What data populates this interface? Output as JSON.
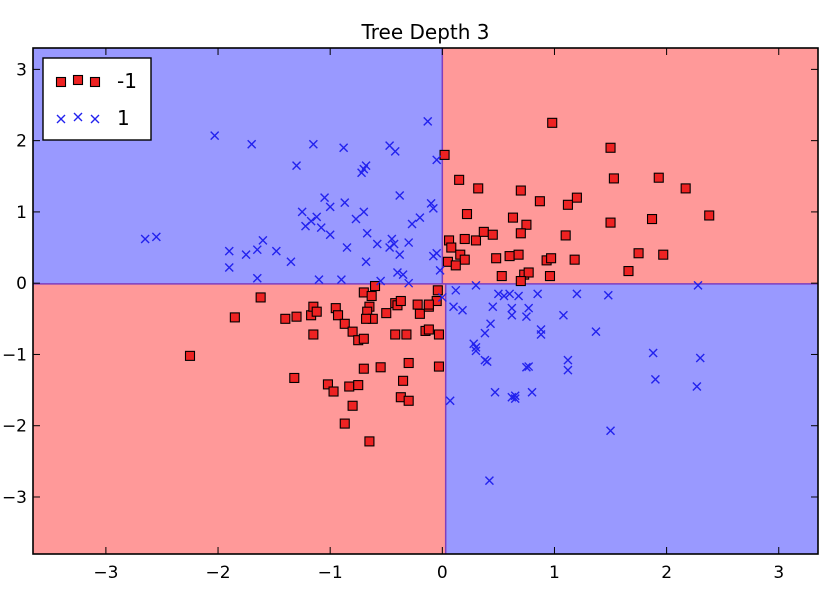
{
  "chart_data": {
    "type": "scatter",
    "title": "Tree Depth 3",
    "xlabel": "",
    "ylabel": "",
    "xlim": [
      -3.65,
      3.35
    ],
    "ylim": [
      -3.8,
      3.3
    ],
    "xticks": [
      -3,
      -2,
      -1,
      0,
      1,
      2,
      3
    ],
    "xtick_labels": [
      "−3",
      "−2",
      "−1",
      "0",
      "1",
      "2",
      "3"
    ],
    "yticks": [
      -3,
      -2,
      -1,
      0,
      1,
      2,
      3
    ],
    "ytick_labels": [
      "−3",
      "−2",
      "−1",
      "0",
      "1",
      "2",
      "3"
    ],
    "grid": false,
    "legend_position": "top-left",
    "colors": {
      "region_negative": "#ff9999",
      "region_positive": "#9999ff",
      "boundary": "#7f3fbf",
      "square_fill": "#ee2222",
      "cross_stroke": "#2222ee"
    },
    "decision_regions": [
      {
        "label": "1",
        "x": [
          -3.65,
          0.0
        ],
        "y": [
          -0.01,
          3.3
        ]
      },
      {
        "label": "-1",
        "x": [
          0.0,
          3.35
        ],
        "y": [
          -0.01,
          3.3
        ]
      },
      {
        "label": "-1",
        "x": [
          -3.65,
          0.03
        ],
        "y": [
          -3.8,
          -0.01
        ]
      },
      {
        "label": "1",
        "x": [
          0.03,
          3.35
        ],
        "y": [
          -3.8,
          -0.01
        ]
      }
    ],
    "series": [
      {
        "name": "-1",
        "marker": "square",
        "points": [
          [
            0.98,
            2.25
          ],
          [
            1.5,
            1.9
          ],
          [
            0.02,
            1.8
          ],
          [
            0.15,
            1.45
          ],
          [
            1.53,
            1.47
          ],
          [
            1.93,
            1.48
          ],
          [
            0.32,
            1.33
          ],
          [
            0.7,
            1.3
          ],
          [
            2.17,
            1.33
          ],
          [
            1.2,
            1.2
          ],
          [
            1.12,
            1.1
          ],
          [
            0.87,
            1.15
          ],
          [
            0.22,
            0.97
          ],
          [
            0.63,
            0.92
          ],
          [
            0.75,
            0.82
          ],
          [
            1.5,
            0.85
          ],
          [
            1.87,
            0.9
          ],
          [
            2.38,
            0.95
          ],
          [
            0.06,
            0.6
          ],
          [
            0.2,
            0.62
          ],
          [
            0.3,
            0.6
          ],
          [
            0.37,
            0.72
          ],
          [
            0.45,
            0.68
          ],
          [
            0.7,
            0.7
          ],
          [
            0.08,
            0.5
          ],
          [
            0.16,
            0.4
          ],
          [
            0.2,
            0.33
          ],
          [
            0.05,
            0.3
          ],
          [
            0.12,
            0.25
          ],
          [
            0.48,
            0.35
          ],
          [
            0.6,
            0.38
          ],
          [
            0.68,
            0.4
          ],
          [
            0.93,
            0.32
          ],
          [
            0.97,
            0.35
          ],
          [
            1.18,
            0.33
          ],
          [
            1.1,
            0.67
          ],
          [
            1.75,
            0.42
          ],
          [
            1.97,
            0.4
          ],
          [
            0.53,
            0.1
          ],
          [
            0.73,
            0.12
          ],
          [
            0.77,
            0.15
          ],
          [
            0.96,
            0.1
          ],
          [
            1.66,
            0.17
          ],
          [
            0.7,
            0.03
          ],
          [
            -2.25,
            -1.02
          ],
          [
            -1.85,
            -0.48
          ],
          [
            -1.62,
            -0.2
          ],
          [
            -1.4,
            -0.5
          ],
          [
            -1.3,
            -0.47
          ],
          [
            -1.17,
            -0.45
          ],
          [
            -1.15,
            -0.33
          ],
          [
            -1.15,
            -0.72
          ],
          [
            -1.12,
            -0.4
          ],
          [
            -0.95,
            -0.35
          ],
          [
            -0.93,
            -0.45
          ],
          [
            -0.87,
            -0.57
          ],
          [
            -0.8,
            -0.68
          ],
          [
            -0.75,
            -0.8
          ],
          [
            -0.7,
            -0.78
          ],
          [
            -0.7,
            -0.13
          ],
          [
            -0.65,
            -0.33
          ],
          [
            -0.67,
            -0.4
          ],
          [
            -0.62,
            -0.5
          ],
          [
            -0.68,
            -0.5
          ],
          [
            -0.63,
            -0.18
          ],
          [
            -0.6,
            -0.04
          ],
          [
            -0.5,
            -0.42
          ],
          [
            -0.42,
            -0.28
          ],
          [
            -0.4,
            -0.31
          ],
          [
            -0.37,
            -0.25
          ],
          [
            -0.42,
            -0.72
          ],
          [
            -0.32,
            -0.72
          ],
          [
            -0.22,
            -0.3
          ],
          [
            -0.2,
            -0.43
          ],
          [
            -0.12,
            -0.33
          ],
          [
            -0.15,
            -0.67
          ],
          [
            -0.12,
            -0.65
          ],
          [
            -0.05,
            -0.25
          ],
          [
            -0.03,
            -0.72
          ],
          [
            -0.04,
            -0.1
          ],
          [
            -0.12,
            -0.3
          ],
          [
            -1.32,
            -1.33
          ],
          [
            -1.02,
            -1.42
          ],
          [
            -0.97,
            -1.52
          ],
          [
            -0.83,
            -1.45
          ],
          [
            -0.75,
            -1.43
          ],
          [
            -0.7,
            -1.2
          ],
          [
            -0.55,
            -1.18
          ],
          [
            -0.3,
            -1.12
          ],
          [
            -0.35,
            -1.37
          ],
          [
            -0.03,
            -1.17
          ],
          [
            -0.37,
            -1.6
          ],
          [
            -0.3,
            -1.65
          ],
          [
            -0.8,
            -1.72
          ],
          [
            -0.87,
            -1.97
          ],
          [
            -0.65,
            -2.22
          ]
        ]
      },
      {
        "name": "1",
        "marker": "x",
        "points": [
          [
            -2.03,
            2.07
          ],
          [
            -1.7,
            1.95
          ],
          [
            -1.3,
            1.65
          ],
          [
            -1.15,
            1.95
          ],
          [
            -0.88,
            1.9
          ],
          [
            -0.72,
            1.55
          ],
          [
            -0.68,
            1.65
          ],
          [
            -0.47,
            1.93
          ],
          [
            -0.42,
            1.85
          ],
          [
            -0.13,
            2.27
          ],
          [
            -0.05,
            1.73
          ],
          [
            -1.05,
            1.2
          ],
          [
            -1.0,
            1.07
          ],
          [
            -0.87,
            1.13
          ],
          [
            -0.7,
            1.6
          ],
          [
            -0.7,
            1.0
          ],
          [
            -0.38,
            1.23
          ],
          [
            -0.27,
            0.83
          ],
          [
            -0.2,
            0.92
          ],
          [
            -0.1,
            1.12
          ],
          [
            -0.08,
            1.05
          ],
          [
            -1.25,
            1.0
          ],
          [
            -1.22,
            0.8
          ],
          [
            -1.17,
            0.87
          ],
          [
            -1.12,
            0.93
          ],
          [
            -1.08,
            0.78
          ],
          [
            -1.0,
            0.68
          ],
          [
            -0.85,
            0.5
          ],
          [
            -0.77,
            0.9
          ],
          [
            -0.67,
            0.7
          ],
          [
            -0.58,
            0.55
          ],
          [
            -0.47,
            0.5
          ],
          [
            -0.45,
            0.62
          ],
          [
            -0.43,
            0.55
          ],
          [
            -0.38,
            0.4
          ],
          [
            -0.3,
            0.57
          ],
          [
            -0.05,
            0.42
          ],
          [
            -2.65,
            0.62
          ],
          [
            -2.55,
            0.65
          ],
          [
            -1.9,
            0.45
          ],
          [
            -1.75,
            0.4
          ],
          [
            -1.65,
            0.47
          ],
          [
            -1.6,
            0.6
          ],
          [
            -1.48,
            0.45
          ],
          [
            -1.9,
            0.22
          ],
          [
            -1.65,
            0.07
          ],
          [
            -1.35,
            0.3
          ],
          [
            -1.1,
            0.05
          ],
          [
            -0.9,
            0.05
          ],
          [
            -0.68,
            0.3
          ],
          [
            -0.55,
            0.03
          ],
          [
            -0.4,
            0.15
          ],
          [
            -0.35,
            0.12
          ],
          [
            -0.3,
            0.0
          ],
          [
            -0.08,
            0.38
          ],
          [
            -0.02,
            0.18
          ],
          [
            2.28,
            -0.03
          ],
          [
            1.48,
            -0.17
          ],
          [
            1.2,
            -0.15
          ],
          [
            0.85,
            -0.15
          ],
          [
            0.77,
            -0.35
          ],
          [
            0.75,
            -0.47
          ],
          [
            0.62,
            -0.45
          ],
          [
            0.6,
            -0.15
          ],
          [
            0.5,
            -0.15
          ],
          [
            0.45,
            -0.33
          ],
          [
            0.55,
            -0.18
          ],
          [
            0.68,
            -0.18
          ],
          [
            0.3,
            -0.03
          ],
          [
            0.12,
            -0.1
          ],
          [
            0.18,
            -0.38
          ],
          [
            0.1,
            -0.33
          ],
          [
            0.0,
            -0.2
          ],
          [
            0.28,
            -0.85
          ],
          [
            0.3,
            -0.9
          ],
          [
            0.3,
            -0.95
          ],
          [
            0.38,
            -0.7
          ],
          [
            0.43,
            -0.57
          ],
          [
            0.62,
            -0.35
          ],
          [
            0.88,
            -0.65
          ],
          [
            0.88,
            -0.72
          ],
          [
            1.08,
            -0.45
          ],
          [
            1.37,
            -0.68
          ],
          [
            0.4,
            -1.1
          ],
          [
            0.38,
            -1.08
          ],
          [
            0.77,
            -1.17
          ],
          [
            0.75,
            -1.18
          ],
          [
            1.12,
            -1.08
          ],
          [
            1.12,
            -1.22
          ],
          [
            1.88,
            -0.98
          ],
          [
            1.9,
            -1.35
          ],
          [
            2.3,
            -1.05
          ],
          [
            2.27,
            -1.45
          ],
          [
            0.47,
            -1.53
          ],
          [
            0.65,
            -1.58
          ],
          [
            0.62,
            -1.6
          ],
          [
            0.65,
            -1.62
          ],
          [
            0.8,
            -1.53
          ],
          [
            1.5,
            -2.07
          ],
          [
            0.07,
            -1.65
          ],
          [
            0.42,
            -2.77
          ]
        ]
      }
    ]
  }
}
